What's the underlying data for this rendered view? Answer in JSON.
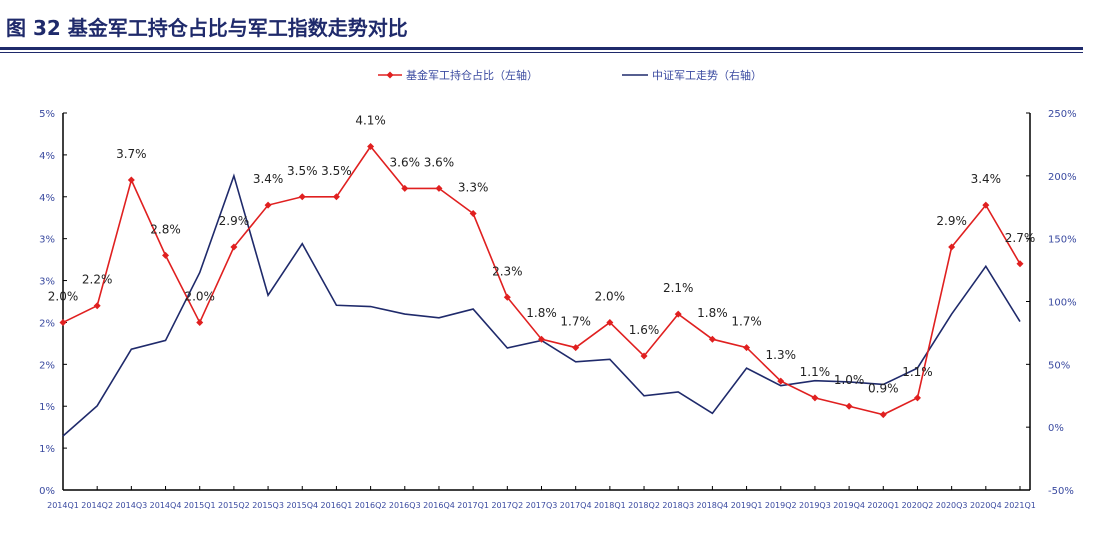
{
  "title": "图 32 基金军工持仓占比与军工指数走势对比",
  "chart_data": {
    "type": "line",
    "title": "图 32 基金军工持仓占比与军工指数走势对比",
    "legend_position": "top",
    "grid": false,
    "categories": [
      "2014Q1",
      "2014Q2",
      "2014Q3",
      "2014Q4",
      "2015Q1",
      "2015Q2",
      "2015Q3",
      "2015Q4",
      "2016Q1",
      "2016Q2",
      "2016Q3",
      "2016Q4",
      "2017Q1",
      "2017Q2",
      "2017Q3",
      "2017Q4",
      "2018Q1",
      "2018Q2",
      "2018Q3",
      "2018Q4",
      "2019Q1",
      "2019Q2",
      "2019Q3",
      "2019Q4",
      "2020Q1",
      "2020Q2",
      "2020Q3",
      "2020Q4",
      "2021Q1"
    ],
    "y_left": {
      "lim": [
        0,
        4.5
      ],
      "ticks": [
        0,
        0.5,
        1,
        1.5,
        2,
        2.5,
        3,
        3.5,
        4,
        4.5
      ],
      "tick_labels": [
        "0%",
        "1%",
        "1%",
        "2%",
        "2%",
        "3%",
        "3%",
        "4%",
        "4%",
        "5%"
      ]
    },
    "y_right": {
      "lim": [
        -50,
        250
      ],
      "ticks": [
        -50,
        0,
        50,
        100,
        150,
        200,
        250
      ],
      "tick_labels": [
        "-50%",
        "0%",
        "50%",
        "100%",
        "150%",
        "200%",
        "250%"
      ]
    },
    "series": [
      {
        "name": "基金军工持仓占比（左轴）",
        "axis": "left",
        "color": "#e02020",
        "marker": "diamond",
        "values": [
          2.0,
          2.2,
          3.7,
          2.8,
          2.0,
          2.9,
          3.4,
          3.5,
          3.5,
          4.1,
          3.6,
          3.6,
          3.3,
          2.3,
          1.8,
          1.7,
          2.0,
          1.6,
          2.1,
          1.8,
          1.7,
          1.3,
          1.1,
          1.0,
          0.9,
          1.1,
          2.9,
          3.4,
          2.7
        ],
        "labels": [
          "2.0%",
          "2.2%",
          "3.7%",
          "2.8%",
          "2.0%",
          "2.9%",
          "3.4%",
          "3.5%",
          "3.5%",
          "4.1%",
          "3.6%",
          "3.6%",
          "3.3%",
          "2.3%",
          "1.8%",
          "1.7%",
          "2.0%",
          "1.6%",
          "2.1%",
          "1.8%",
          "1.7%",
          "1.3%",
          "1.1%",
          "1.0%",
          "0.9%",
          "1.1%",
          "2.9%",
          "3.4%",
          "2.7%"
        ]
      },
      {
        "name": "中证军工走势（右轴）",
        "axis": "right",
        "color": "#1f2a6b",
        "values": [
          -7,
          17,
          62,
          69,
          123,
          200,
          105,
          146,
          97,
          96,
          90,
          87,
          94,
          63,
          69,
          52,
          54,
          25,
          28,
          11,
          47,
          33,
          37,
          36,
          34,
          47,
          90,
          128,
          84
        ]
      }
    ]
  }
}
